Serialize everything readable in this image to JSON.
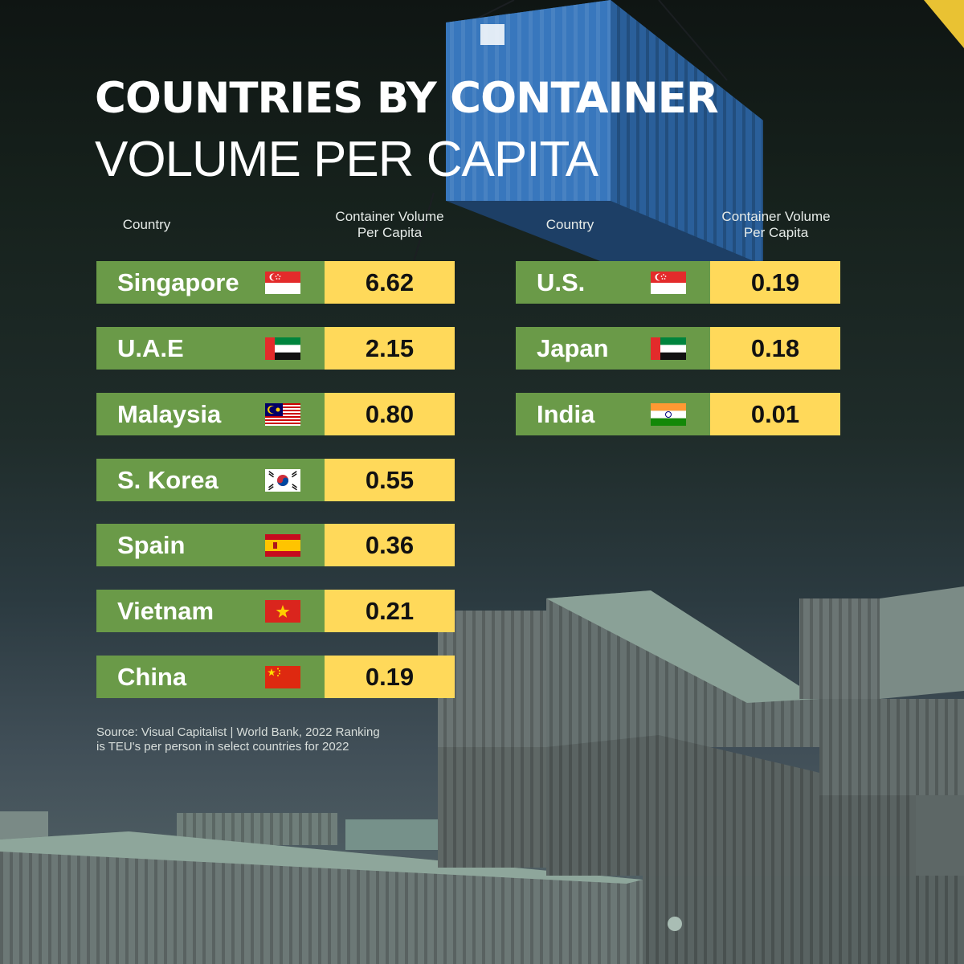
{
  "title_line1": "COUNTRIES BY CONTAINER",
  "title_line2": "VOLUME PER CAPITA",
  "headers": {
    "country": "Country",
    "value_line1": "Container Volume",
    "value_line2": "Per Capita"
  },
  "chart_data": {
    "type": "table",
    "title": "COUNTRIES BY CONTAINER VOLUME PER CAPITA",
    "columns": [
      "Country",
      "Container Volume Per Capita"
    ],
    "rows": [
      {
        "country": "Singapore",
        "flag": "singapore-flag",
        "value": "6.62"
      },
      {
        "country": "U.A.E",
        "flag": "uae-flag",
        "value": "2.15"
      },
      {
        "country": "Malaysia",
        "flag": "malaysia-flag",
        "value": "0.80"
      },
      {
        "country": "S. Korea",
        "flag": "south-korea-flag",
        "value": "0.55"
      },
      {
        "country": "Spain",
        "flag": "spain-flag",
        "value": "0.36"
      },
      {
        "country": "Vietnam",
        "flag": "vietnam-flag",
        "value": "0.21"
      },
      {
        "country": "China",
        "flag": "china-flag",
        "value": "0.19"
      },
      {
        "country": "U.S.",
        "flag": "singapore-flag",
        "value": "0.19"
      },
      {
        "country": "Japan",
        "flag": "uae-flag",
        "value": "0.18"
      },
      {
        "country": "India",
        "flag": "india-flag",
        "value": "0.01"
      }
    ]
  },
  "source_line1": "Source: Visual Capitalist | World Bank, 2022 Ranking",
  "source_line2": "is TEU's per person in select countries for 2022",
  "colors": {
    "country_cell": "#6a9a48",
    "value_cell": "#ffd95a",
    "background": "#1a2420",
    "container_blue": "#2f6fb3",
    "stacked_containers": "#5f6a68"
  }
}
